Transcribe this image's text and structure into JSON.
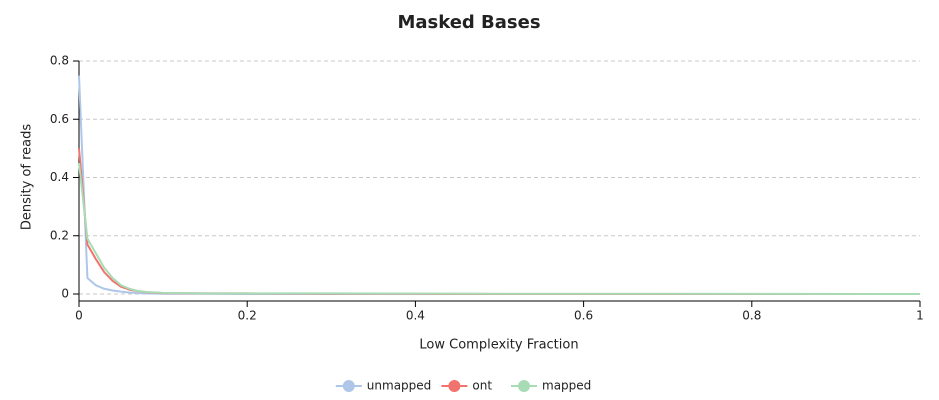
{
  "chart_data": {
    "type": "line",
    "title": "Masked Bases",
    "x_label": "Low Complexity Fraction",
    "y_label": "Density of reads",
    "x": [
      0,
      0.01,
      0.02,
      0.03,
      0.04,
      0.05,
      0.06,
      0.07,
      0.08,
      0.1,
      0.15,
      0.2,
      0.3,
      0.5,
      0.7,
      1
    ],
    "series": [
      {
        "name": "unmapped",
        "color": "#aec7e8",
        "values": [
          0.75,
          0.055,
          0.03,
          0.018,
          0.012,
          0.008,
          0.005,
          0.003,
          0.002,
          0.001,
          0.001,
          0,
          0,
          0,
          0,
          0
        ]
      },
      {
        "name": "ont",
        "color": "#f0736d",
        "values": [
          0.5,
          0.17,
          0.12,
          0.075,
          0.045,
          0.025,
          0.015,
          0.01,
          0.006,
          0.003,
          0.002,
          0.002,
          0.001,
          0,
          0,
          0
        ]
      },
      {
        "name": "mapped",
        "color": "#a8dcb5",
        "values": [
          0.45,
          0.19,
          0.14,
          0.09,
          0.055,
          0.03,
          0.018,
          0.01,
          0.007,
          0.004,
          0.002,
          0.002,
          0.002,
          0.001,
          0.001,
          0
        ]
      }
    ],
    "xlim": [
      0,
      1
    ],
    "xticks": [
      0,
      0.2,
      0.4,
      0.6,
      0.8,
      1
    ],
    "ylim": [
      0,
      0.8
    ],
    "yticks": [
      0,
      0.2,
      0.4,
      0.6,
      0.8
    ],
    "grid": true,
    "legend": "bottom"
  }
}
